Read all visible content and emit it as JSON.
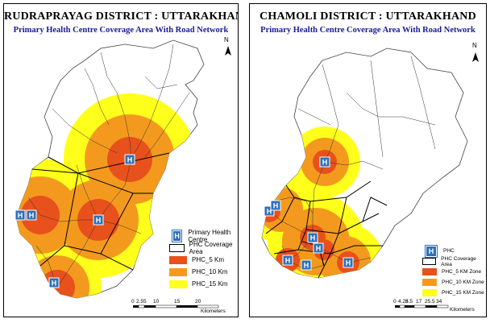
{
  "left": {
    "title": "RUDRAPRAYAG DISTRICT : UTTARAKHAND",
    "subtitle": "Primary Health Centre Coverage Area With Road Network",
    "north": "N",
    "legend": [
      {
        "type": "icon",
        "label": "Primary Health Centre"
      },
      {
        "type": "box",
        "label": "PHC Coverage Area"
      },
      {
        "type": "c5",
        "label": "PHC_5 Km"
      },
      {
        "type": "c10",
        "label": "PHC_10 Km"
      },
      {
        "type": "c15",
        "label": "PHC_15 Km"
      }
    ],
    "scale_ticks": [
      "0",
      "2.5",
      "5",
      "10",
      "15",
      "20"
    ],
    "scale_unit": "Kilometers",
    "phc_marker": "H"
  },
  "right": {
    "title": "CHAMOLI DISTRICT : UTTARAKHAND",
    "subtitle": "Primary Health Centre Coverage Area With Road Network",
    "north": "N",
    "legend": [
      {
        "type": "icon",
        "label": "PHC"
      },
      {
        "type": "box",
        "label": "PHC Coverage Area"
      },
      {
        "type": "c5",
        "label": "PHC_5 KM Zone"
      },
      {
        "type": "c10",
        "label": "PHC_10 KM Zone"
      },
      {
        "type": "c15",
        "label": "PHC_15 KM Zone"
      }
    ],
    "scale_ticks": [
      "0",
      "4.25",
      "8.5",
      "17",
      "25.5",
      "34"
    ],
    "scale_unit": "Kilometers",
    "phc_marker": "H"
  },
  "colors": {
    "zone5": "#e8511b",
    "zone10": "#f39a1e",
    "zone15": "#ffff1c",
    "phc_icon": "#2f6fb8"
  }
}
